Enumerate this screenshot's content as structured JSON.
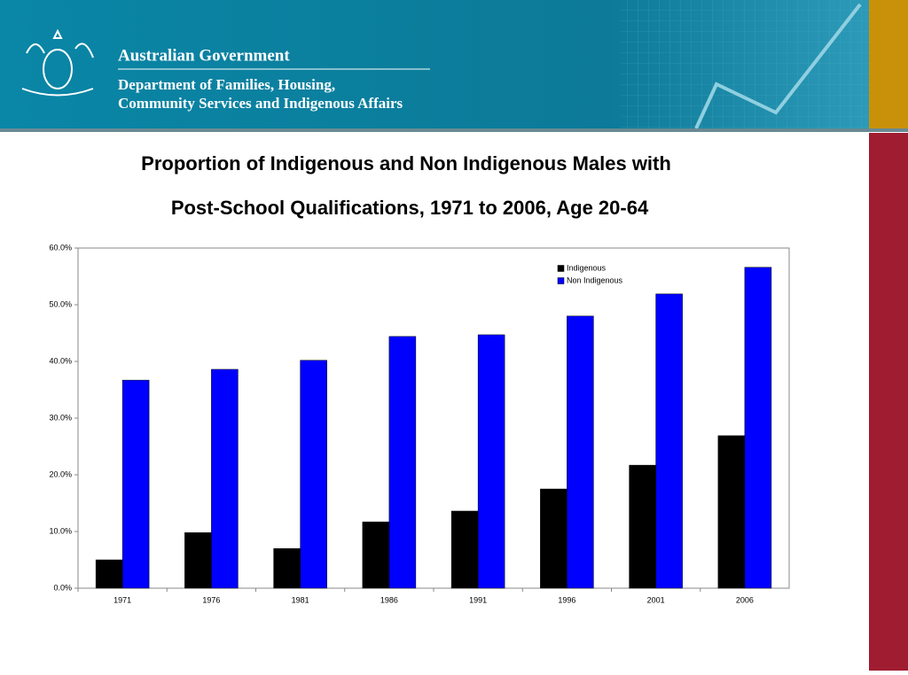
{
  "header": {
    "org": "Australian Government",
    "department": [
      "Department of Families, Housing,",
      "Community Services and Indigenous Affairs"
    ]
  },
  "chart_data": {
    "type": "bar",
    "title": [
      "Proportion of Indigenous and Non Indigenous Males with",
      "Post-School Qualifications, 1971 to 2006, Age 20-64"
    ],
    "categories": [
      "1971",
      "1976",
      "1981",
      "1986",
      "1991",
      "1996",
      "2001",
      "2006"
    ],
    "series": [
      {
        "name": "Indigenous",
        "color": "#000000",
        "values": [
          5.0,
          9.8,
          7.0,
          11.7,
          13.6,
          17.5,
          21.7,
          26.9
        ]
      },
      {
        "name": "Non Indigenous",
        "color": "#0000ff",
        "values": [
          36.7,
          38.6,
          40.2,
          44.4,
          44.7,
          48.0,
          51.9,
          56.6
        ]
      }
    ],
    "ylim": [
      0,
      60
    ],
    "yticks": [
      {
        "value": 0,
        "label": "0.0%"
      },
      {
        "value": 10,
        "label": "10.0%"
      },
      {
        "value": 20,
        "label": "20.0%"
      },
      {
        "value": 30,
        "label": "30.0%"
      },
      {
        "value": 40,
        "label": "40.0%"
      },
      {
        "value": 50,
        "label": "50.0%"
      },
      {
        "value": 60,
        "label": "60.0%"
      }
    ],
    "legend": "top-right"
  }
}
